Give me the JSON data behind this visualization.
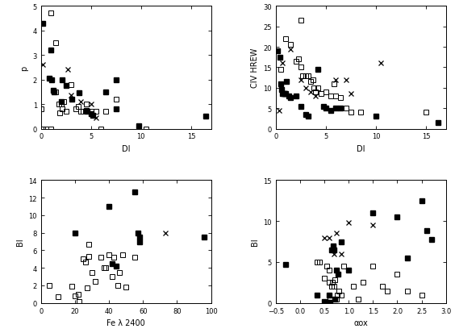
{
  "plot1": {
    "xlabel": "DI",
    "ylabel": "p",
    "xlim": [
      0,
      17
    ],
    "ylim": [
      0,
      5
    ],
    "yticks": [
      0,
      1,
      2,
      3,
      4,
      5
    ],
    "xticks": [
      0,
      5,
      10,
      15
    ],
    "filled_squares": [
      [
        0.15,
        4.3
      ],
      [
        1.0,
        3.2
      ],
      [
        0.8,
        2.05
      ],
      [
        1.1,
        2.0
      ],
      [
        1.2,
        1.55
      ],
      [
        1.3,
        1.5
      ],
      [
        2.1,
        2.0
      ],
      [
        2.5,
        1.75
      ],
      [
        2.0,
        1.1
      ],
      [
        3.1,
        1.2
      ],
      [
        3.8,
        1.45
      ],
      [
        4.5,
        0.75
      ],
      [
        4.6,
        0.7
      ],
      [
        5.0,
        0.6
      ],
      [
        5.2,
        0.55
      ],
      [
        6.5,
        1.5
      ],
      [
        7.5,
        2.0
      ],
      [
        7.5,
        0.8
      ],
      [
        9.8,
        0.1
      ],
      [
        16.5,
        0.5
      ]
    ],
    "open_squares": [
      [
        1.0,
        4.7
      ],
      [
        1.5,
        3.5
      ],
      [
        0.0,
        0.8
      ],
      [
        0.2,
        0.0
      ],
      [
        0.5,
        0.0
      ],
      [
        1.0,
        0.0
      ],
      [
        1.5,
        1.5
      ],
      [
        1.8,
        1.0
      ],
      [
        1.9,
        0.65
      ],
      [
        2.0,
        1.0
      ],
      [
        2.1,
        0.8
      ],
      [
        2.3,
        1.1
      ],
      [
        2.5,
        0.7
      ],
      [
        3.0,
        1.8
      ],
      [
        3.5,
        0.8
      ],
      [
        3.7,
        0.9
      ],
      [
        4.0,
        0.7
      ],
      [
        4.2,
        0.7
      ],
      [
        4.5,
        1.0
      ],
      [
        5.0,
        0.7
      ],
      [
        5.5,
        0.7
      ],
      [
        6.0,
        0.0
      ],
      [
        6.5,
        0.7
      ],
      [
        7.5,
        1.2
      ],
      [
        10.5,
        0.0
      ]
    ],
    "crosses": [
      [
        0.2,
        2.6
      ],
      [
        2.7,
        2.4
      ],
      [
        3.0,
        1.35
      ],
      [
        4.0,
        1.1
      ],
      [
        5.0,
        1.0
      ],
      [
        5.5,
        0.45
      ]
    ]
  },
  "plot2": {
    "xlabel": "DI",
    "ylabel": "CIV HREW",
    "xlim": [
      0,
      17
    ],
    "ylim": [
      0,
      30
    ],
    "yticks": [
      0,
      5,
      10,
      15,
      20,
      25,
      30
    ],
    "xticks": [
      0,
      5,
      10,
      15
    ],
    "filled_squares": [
      [
        0.2,
        19.0
      ],
      [
        0.4,
        17.5
      ],
      [
        0.5,
        11.0
      ],
      [
        0.6,
        9.5
      ],
      [
        0.7,
        8.5
      ],
      [
        0.8,
        8.5
      ],
      [
        0.9,
        8.5
      ],
      [
        1.0,
        8.5
      ],
      [
        1.1,
        11.5
      ],
      [
        1.3,
        8.0
      ],
      [
        1.5,
        7.5
      ],
      [
        2.0,
        8.0
      ],
      [
        2.5,
        5.5
      ],
      [
        3.0,
        3.5
      ],
      [
        3.2,
        3.0
      ],
      [
        4.2,
        14.5
      ],
      [
        4.8,
        5.5
      ],
      [
        5.0,
        5.0
      ],
      [
        5.5,
        4.5
      ],
      [
        6.0,
        5.0
      ],
      [
        6.5,
        5.0
      ],
      [
        10.0,
        3.0
      ],
      [
        16.2,
        1.5
      ]
    ],
    "open_squares": [
      [
        0.5,
        14.5
      ],
      [
        1.0,
        22.0
      ],
      [
        1.5,
        20.5
      ],
      [
        2.0,
        16.5
      ],
      [
        2.3,
        17.0
      ],
      [
        2.5,
        15.0
      ],
      [
        2.7,
        13.0
      ],
      [
        3.0,
        13.0
      ],
      [
        3.2,
        13.0
      ],
      [
        3.5,
        11.5
      ],
      [
        3.7,
        12.0
      ],
      [
        3.8,
        10.0
      ],
      [
        4.0,
        9.0
      ],
      [
        4.2,
        10.0
      ],
      [
        4.5,
        8.5
      ],
      [
        5.0,
        9.0
      ],
      [
        5.5,
        8.0
      ],
      [
        5.8,
        11.0
      ],
      [
        6.0,
        8.0
      ],
      [
        6.5,
        7.5
      ],
      [
        7.0,
        5.0
      ],
      [
        7.5,
        4.0
      ],
      [
        2.5,
        26.5
      ],
      [
        8.5,
        4.0
      ],
      [
        15.0,
        4.0
      ]
    ],
    "crosses": [
      [
        0.3,
        4.5
      ],
      [
        0.7,
        16.0
      ],
      [
        1.5,
        19.5
      ],
      [
        2.5,
        12.0
      ],
      [
        3.0,
        10.0
      ],
      [
        3.5,
        9.0
      ],
      [
        4.0,
        8.0
      ],
      [
        5.0,
        5.0
      ],
      [
        6.0,
        12.0
      ],
      [
        7.0,
        12.0
      ],
      [
        7.5,
        8.5
      ],
      [
        10.5,
        16.0
      ]
    ]
  },
  "plot3": {
    "xlabel": "Fe λ 2400",
    "ylabel": "BI",
    "xlim": [
      0,
      100
    ],
    "ylim": [
      0,
      14
    ],
    "yticks": [
      0,
      2,
      4,
      6,
      8,
      10,
      12,
      14
    ],
    "xticks": [
      0,
      20,
      40,
      60,
      80,
      100
    ],
    "filled_squares": [
      [
        20.0,
        8.0
      ],
      [
        40.0,
        11.0
      ],
      [
        42.0,
        4.5
      ],
      [
        44.0,
        4.2
      ],
      [
        55.0,
        12.7
      ],
      [
        57.0,
        8.0
      ],
      [
        58.0,
        7.0
      ],
      [
        58.0,
        7.5
      ],
      [
        96.0,
        7.5
      ]
    ],
    "open_squares": [
      [
        5.0,
        2.0
      ],
      [
        10.0,
        0.7
      ],
      [
        18.0,
        1.9
      ],
      [
        20.0,
        0.8
      ],
      [
        22.0,
        1.0
      ],
      [
        22.5,
        0.2
      ],
      [
        25.0,
        5.0
      ],
      [
        26.0,
        4.7
      ],
      [
        27.0,
        1.7
      ],
      [
        28.0,
        5.3
      ],
      [
        30.0,
        3.5
      ],
      [
        32.0,
        2.5
      ],
      [
        35.0,
        5.2
      ],
      [
        37.0,
        4.0
      ],
      [
        38.0,
        4.0
      ],
      [
        40.0,
        5.5
      ],
      [
        42.0,
        3.0
      ],
      [
        43.0,
        5.2
      ],
      [
        45.0,
        2.0
      ],
      [
        46.0,
        3.5
      ],
      [
        48.0,
        5.5
      ],
      [
        50.0,
        1.8
      ],
      [
        55.0,
        5.2
      ],
      [
        28.0,
        6.7
      ]
    ],
    "crosses": [
      [
        73.0,
        8.0
      ]
    ]
  },
  "plot4": {
    "xlabel": "αox",
    "ylabel": "BI",
    "xlim": [
      -0.5,
      3.0
    ],
    "ylim": [
      0,
      15
    ],
    "yticks": [
      0,
      5,
      10,
      15
    ],
    "xticks": [
      -0.5,
      0.0,
      0.5,
      1.0,
      1.5,
      2.0,
      2.5,
      3.0
    ],
    "filled_squares": [
      [
        -0.3,
        4.7
      ],
      [
        0.35,
        1.0
      ],
      [
        0.5,
        0.2
      ],
      [
        0.55,
        0.1
      ],
      [
        0.6,
        1.0
      ],
      [
        0.62,
        0.1
      ],
      [
        0.65,
        6.5
      ],
      [
        0.68,
        7.0
      ],
      [
        0.7,
        6.5
      ],
      [
        0.72,
        0.5
      ],
      [
        0.75,
        4.0
      ],
      [
        0.78,
        3.5
      ],
      [
        0.85,
        7.5
      ],
      [
        1.0,
        4.0
      ],
      [
        1.5,
        11.0
      ],
      [
        2.0,
        10.5
      ],
      [
        2.2,
        5.5
      ],
      [
        2.5,
        12.5
      ],
      [
        2.6,
        8.8
      ],
      [
        2.7,
        7.8
      ]
    ],
    "open_squares": [
      [
        0.35,
        5.0
      ],
      [
        0.4,
        5.0
      ],
      [
        0.5,
        3.0
      ],
      [
        0.55,
        4.5
      ],
      [
        0.6,
        4.0
      ],
      [
        0.6,
        2.5
      ],
      [
        0.62,
        0.5
      ],
      [
        0.65,
        2.0
      ],
      [
        0.67,
        2.5
      ],
      [
        0.7,
        2.0
      ],
      [
        0.72,
        2.8
      ],
      [
        0.75,
        0.5
      ],
      [
        0.77,
        1.0
      ],
      [
        0.8,
        1.5
      ],
      [
        0.85,
        1.0
      ],
      [
        0.9,
        4.5
      ],
      [
        1.0,
        4.0
      ],
      [
        1.1,
        2.0
      ],
      [
        1.2,
        0.5
      ],
      [
        1.3,
        2.5
      ],
      [
        1.5,
        4.5
      ],
      [
        1.7,
        2.0
      ],
      [
        1.8,
        1.5
      ],
      [
        2.0,
        3.5
      ],
      [
        2.2,
        1.5
      ],
      [
        2.5,
        1.0
      ]
    ],
    "crosses": [
      [
        0.5,
        8.0
      ],
      [
        0.6,
        8.0
      ],
      [
        0.7,
        6.0
      ],
      [
        0.75,
        8.5
      ],
      [
        0.85,
        6.0
      ],
      [
        1.0,
        9.8
      ],
      [
        1.5,
        9.5
      ]
    ]
  },
  "marker_size": 4,
  "fontsize": 7,
  "tick_fontsize": 6
}
